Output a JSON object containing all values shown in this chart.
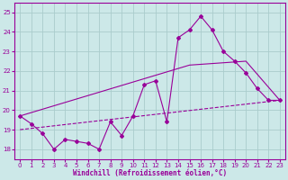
{
  "xlabel": "Windchill (Refroidissement éolien,°C)",
  "bg_color": "#cce8e8",
  "grid_color": "#aacccc",
  "line_color": "#990099",
  "xlim": [
    -0.5,
    23.5
  ],
  "ylim": [
    17.5,
    25.5
  ],
  "xticks": [
    0,
    1,
    2,
    3,
    4,
    5,
    6,
    7,
    8,
    9,
    10,
    11,
    12,
    13,
    14,
    15,
    16,
    17,
    18,
    19,
    20,
    21,
    22,
    23
  ],
  "yticks": [
    18,
    19,
    20,
    21,
    22,
    23,
    24,
    25
  ],
  "main_x": [
    0,
    1,
    2,
    3,
    4,
    5,
    6,
    7,
    8,
    9,
    10,
    11,
    12,
    13,
    14,
    15,
    16,
    17,
    18,
    19,
    20,
    21,
    22,
    23
  ],
  "main_y": [
    19.7,
    19.3,
    18.8,
    18.0,
    18.5,
    18.4,
    18.3,
    18.0,
    19.4,
    18.7,
    19.7,
    21.3,
    21.5,
    19.4,
    23.7,
    24.1,
    24.8,
    24.1,
    23.0,
    22.5,
    21.9,
    21.1,
    20.5,
    20.5
  ],
  "solid_trend_x": [
    0,
    15,
    20,
    23
  ],
  "solid_trend_y": [
    19.7,
    22.3,
    22.5,
    20.5
  ],
  "dashed_trend_x": [
    0,
    23
  ],
  "dashed_trend_y": [
    19.0,
    20.5
  ]
}
